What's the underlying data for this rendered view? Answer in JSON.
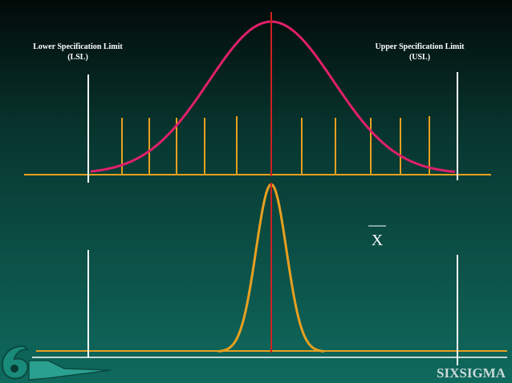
{
  "labels": {
    "lsl": {
      "line1": "Lower Specification Limit",
      "line2": "(LSL)"
    },
    "usl": {
      "line1": "Upper Specification Limit",
      "line2": "(USL)"
    }
  },
  "mean_symbol": "X",
  "brand": {
    "six": "SIX",
    "sigma": "SIGMA"
  }
}
